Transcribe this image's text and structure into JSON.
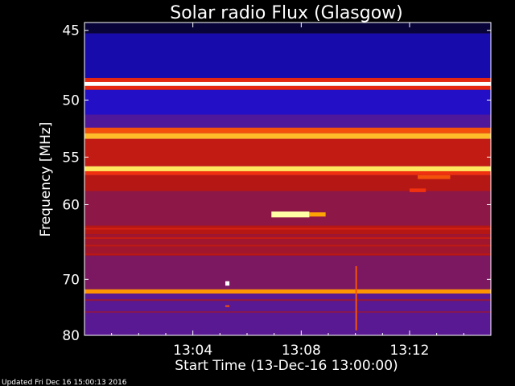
{
  "chart_data": {
    "type": "heatmap",
    "title": "Solar radio Flux (Glasgow)",
    "xlabel": "Start Time (13-Dec-16 13:00:00)",
    "ylabel": "Frequency [MHz]",
    "x_range_minutes": [
      0,
      15.0
    ],
    "y_range_mhz": [
      44.5,
      80.0
    ],
    "y_ticks": [
      45,
      50,
      55,
      60,
      70,
      80
    ],
    "x_ticks": [
      {
        "minute": 4,
        "label": "13:04"
      },
      {
        "minute": 8,
        "label": "13:08"
      },
      {
        "minute": 12,
        "label": "13:12"
      }
    ],
    "y_scale": "reciprocal",
    "colormap": [
      "#000000",
      "#1c0dcc",
      "#5a1a90",
      "#b01515",
      "#ee2a10",
      "#ffa000",
      "#ffff80",
      "#ffffff"
    ],
    "background_level": 0.3,
    "bands": [
      {
        "f0": 44.5,
        "f1": 45.2,
        "level": 0.04
      },
      {
        "f0": 45.2,
        "f1": 48.3,
        "level": 0.12
      },
      {
        "f0": 48.3,
        "f1": 48.6,
        "level": 0.55
      },
      {
        "f0": 48.6,
        "f1": 48.9,
        "level": 1.0
      },
      {
        "f0": 48.9,
        "f1": 49.2,
        "level": 0.55
      },
      {
        "f0": 49.2,
        "f1": 51.2,
        "level": 0.16
      },
      {
        "f0": 51.2,
        "f1": 52.3,
        "level": 0.26
      },
      {
        "f0": 52.3,
        "f1": 52.8,
        "level": 0.62
      },
      {
        "f0": 52.8,
        "f1": 53.3,
        "level": 0.76
      },
      {
        "f0": 53.3,
        "f1": 55.9,
        "level": 0.47
      },
      {
        "f0": 55.9,
        "f1": 56.4,
        "level": 0.82
      },
      {
        "f0": 56.4,
        "f1": 56.8,
        "level": 0.58
      },
      {
        "f0": 56.8,
        "f1": 58.5,
        "level": 0.44
      },
      {
        "f0": 58.5,
        "f1": 62.5,
        "level": 0.37
      },
      {
        "f0": 62.5,
        "f1": 63.6,
        "level": 0.44
      },
      {
        "f0": 63.6,
        "f1": 66.5,
        "level": 0.4
      },
      {
        "f0": 66.5,
        "f1": 71.6,
        "level": 0.34
      },
      {
        "f0": 71.6,
        "f1": 72.3,
        "level": 0.7
      },
      {
        "f0": 72.3,
        "f1": 80.0,
        "level": 0.28
      }
    ],
    "lines": [
      {
        "f": 62.9,
        "level": 0.52
      },
      {
        "f": 64.1,
        "level": 0.48
      },
      {
        "f": 65.1,
        "level": 0.46
      },
      {
        "f": 66.3,
        "level": 0.45
      },
      {
        "f": 73.4,
        "level": 0.38
      },
      {
        "f": 75.5,
        "level": 0.36
      }
    ],
    "bursts": [
      {
        "t0": 6.9,
        "t1": 8.3,
        "f0": 60.8,
        "f1": 61.5,
        "level": 0.9
      },
      {
        "t0": 8.3,
        "t1": 8.9,
        "f0": 60.9,
        "f1": 61.4,
        "level": 0.72
      },
      {
        "t0": 5.2,
        "t1": 5.35,
        "f0": 70.3,
        "f1": 71.0,
        "level": 1.0
      },
      {
        "t0": 5.2,
        "t1": 5.35,
        "f0": 74.3,
        "f1": 74.6,
        "level": 0.62
      },
      {
        "t0": 12.3,
        "t1": 13.5,
        "f0": 56.8,
        "f1": 57.2,
        "level": 0.62
      },
      {
        "t0": 12.0,
        "t1": 12.6,
        "f0": 58.2,
        "f1": 58.6,
        "level": 0.58
      },
      {
        "t0": 10.0,
        "t1": 10.06,
        "f0": 68.0,
        "f1": 79.0,
        "level": 0.62
      }
    ]
  },
  "footer": {
    "updated": "Updated Fri Dec 16 15:00:13 2016"
  }
}
